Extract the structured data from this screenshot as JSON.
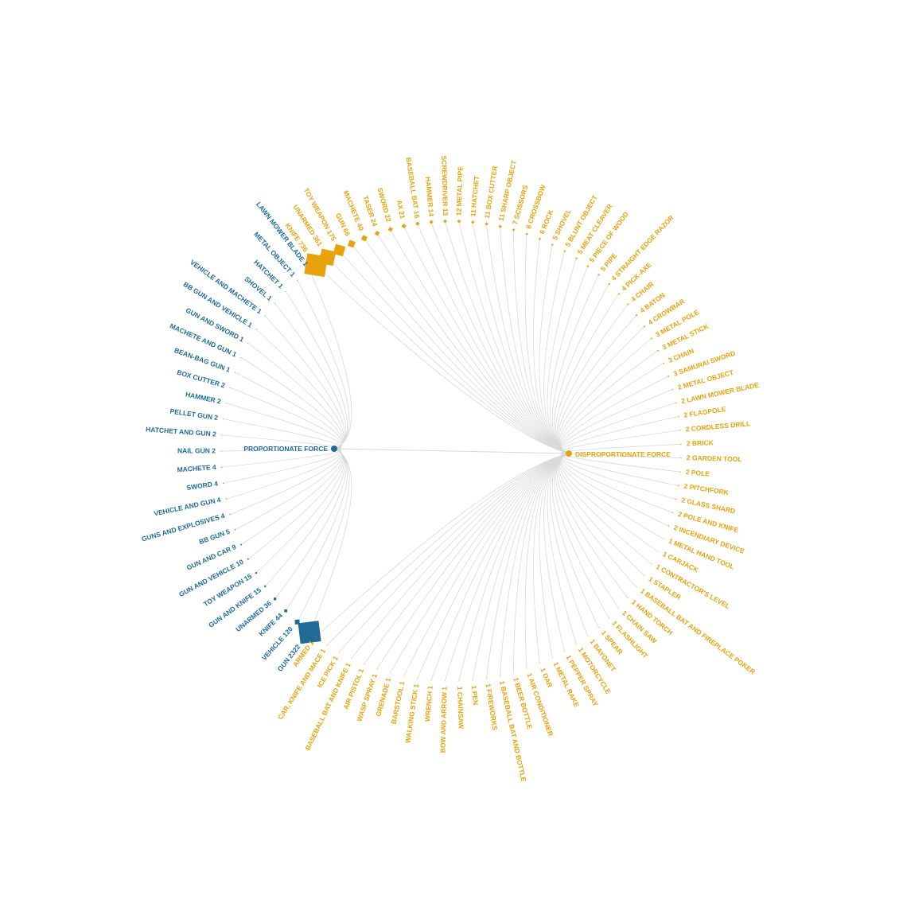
{
  "chart_data": {
    "type": "radial-dendrogram",
    "colors": {
      "proportionate": "#1f6a96",
      "disproportionate": "#e8a20c",
      "link": "#d9d9d9"
    },
    "hubs": {
      "proportionate": {
        "label": "PROPORTIONATE FORCE"
      },
      "disproportionate": {
        "label": "DISPROPORTIONATE FORCE"
      }
    },
    "proportionate": [
      {
        "name": "LAWN MOWER BLADE",
        "value": 1
      },
      {
        "name": "METAL OBJECT",
        "value": 1
      },
      {
        "name": "HATCHET",
        "value": 1
      },
      {
        "name": "SHOVEL",
        "value": 1
      },
      {
        "name": "VEHICLE AND MACHETE",
        "value": 1
      },
      {
        "name": "BB GUN AND VEHICLE",
        "value": 1
      },
      {
        "name": "GUN AND SWORD",
        "value": 1
      },
      {
        "name": "MACHETE AND GUN",
        "value": 1
      },
      {
        "name": "BEAN-BAG GUN",
        "value": 1
      },
      {
        "name": "BOX CUTTER",
        "value": 2
      },
      {
        "name": "HAMMER",
        "value": 2
      },
      {
        "name": "PELLET GUN",
        "value": 2
      },
      {
        "name": "HATCHET AND GUN",
        "value": 2
      },
      {
        "name": "NAIL GUN",
        "value": 2
      },
      {
        "name": "MACHETE",
        "value": 4
      },
      {
        "name": "SWORD",
        "value": 4
      },
      {
        "name": "VEHICLE AND GUN",
        "value": 4
      },
      {
        "name": "GUNS AND EXPLOSIVES",
        "value": 4
      },
      {
        "name": "BB GUN",
        "value": 5
      },
      {
        "name": "GUN AND CAR",
        "value": 9
      },
      {
        "name": "GUN AND VEHICLE",
        "value": 10
      },
      {
        "name": "TOY WEAPON",
        "value": 15
      },
      {
        "name": "GUN AND KNIFE",
        "value": 15
      },
      {
        "name": "UNARMED",
        "value": 36
      },
      {
        "name": "KNIFE",
        "value": 44
      },
      {
        "name": "VEHICLE",
        "value": 120
      },
      {
        "name": "GUN",
        "value": 2322
      }
    ],
    "disproportionate": [
      {
        "name": "KNIFE",
        "value": 736
      },
      {
        "name": "UNARMED",
        "value": 361
      },
      {
        "name": "TOY WEAPON",
        "value": 175
      },
      {
        "name": "GUN",
        "value": 66
      },
      {
        "name": "MACHETE",
        "value": 40
      },
      {
        "name": "TASER",
        "value": 24
      },
      {
        "name": "SWORD",
        "value": 22
      },
      {
        "name": "AX",
        "value": 21
      },
      {
        "name": "BASEBALL BAT",
        "value": 16
      },
      {
        "name": "HAMMER",
        "value": 14
      },
      {
        "name": "SCREWDRIVER",
        "value": 13
      },
      {
        "name": "METAL PIPE",
        "value": 12
      },
      {
        "name": "HATCHET",
        "value": 11
      },
      {
        "name": "BOX CUTTER",
        "value": 11
      },
      {
        "name": "SHARP OBJECT",
        "value": 11
      },
      {
        "name": "SCISSORS",
        "value": 7
      },
      {
        "name": "CROSSBOW",
        "value": 6
      },
      {
        "name": "ROCK",
        "value": 6
      },
      {
        "name": "SHOVEL",
        "value": 5
      },
      {
        "name": "BLUNT OBJECT",
        "value": 5
      },
      {
        "name": "MEAT CLEAVER",
        "value": 5
      },
      {
        "name": "PIECE OF WOOD",
        "value": 5
      },
      {
        "name": "PIPE",
        "value": 5
      },
      {
        "name": "STRAIGHT EDGE RAZOR",
        "value": 4
      },
      {
        "name": "PICK-AXE",
        "value": 4
      },
      {
        "name": "CHAIR",
        "value": 4
      },
      {
        "name": "BATON",
        "value": 4
      },
      {
        "name": "CROWBAR",
        "value": 4
      },
      {
        "name": "METAL POLE",
        "value": 3
      },
      {
        "name": "METAL STICK",
        "value": 3
      },
      {
        "name": "CHAIN",
        "value": 3
      },
      {
        "name": "SAMURAI SWORD",
        "value": 3
      },
      {
        "name": "METAL OBJECT",
        "value": 2
      },
      {
        "name": "LAWN MOWER BLADE",
        "value": 2
      },
      {
        "name": "FLAGPOLE",
        "value": 2
      },
      {
        "name": "CORDLESS DRILL",
        "value": 2
      },
      {
        "name": "BRICK",
        "value": 2
      },
      {
        "name": "GARDEN TOOL",
        "value": 2
      },
      {
        "name": "POLE",
        "value": 2
      },
      {
        "name": "PITCHFORK",
        "value": 2
      },
      {
        "name": "GLASS SHARD",
        "value": 2
      },
      {
        "name": "POLE AND KNIFE",
        "value": 2
      },
      {
        "name": "INCENDIARY DEVICE",
        "value": 2
      },
      {
        "name": "METAL HAND TOOL",
        "value": 1
      },
      {
        "name": "CARJACK",
        "value": 1
      },
      {
        "name": "CONTRACTOR'S LEVEL",
        "value": 1
      },
      {
        "name": "STAPLER",
        "value": 1
      },
      {
        "name": "BASEBALL BAT AND FIREPLACE POKER",
        "value": 1
      },
      {
        "name": "HAND TORCH",
        "value": 1
      },
      {
        "name": "CHAIN SAW",
        "value": 1
      },
      {
        "name": "FLASHLIGHT",
        "value": 1
      },
      {
        "name": "SPEAR",
        "value": 1
      },
      {
        "name": "BAYONET",
        "value": 1
      },
      {
        "name": "MOTORCYCLE",
        "value": 1
      },
      {
        "name": "PEPPER SPRAY",
        "value": 1
      },
      {
        "name": "METAL RAKE",
        "value": 1
      },
      {
        "name": "OAR",
        "value": 1
      },
      {
        "name": "AIR CONDITIONER",
        "value": 1
      },
      {
        "name": "BEER BOTTLE",
        "value": 1
      },
      {
        "name": "BASEBALL BAT AND BOTTLE",
        "value": 1
      },
      {
        "name": "FIREWORKS",
        "value": 1
      },
      {
        "name": "PEN",
        "value": 1
      },
      {
        "name": "CHAINSAW",
        "value": 1
      },
      {
        "name": "BOW AND ARROW",
        "value": 1
      },
      {
        "name": "WRENCH",
        "value": 1
      },
      {
        "name": "WALKING STICK",
        "value": 1
      },
      {
        "name": "BARSTOOL",
        "value": 1
      },
      {
        "name": "GRENADE",
        "value": 1
      },
      {
        "name": "WASP SPRAY",
        "value": 1
      },
      {
        "name": "AIR PISTOL",
        "value": 1
      },
      {
        "name": "BASEBALL BAT AND KNIFE",
        "value": 1
      },
      {
        "name": "ICE PICK",
        "value": 1
      },
      {
        "name": "CAR, KNIFE AND MACE",
        "value": 1
      },
      {
        "name": "ARMED",
        "value": 1
      }
    ]
  }
}
